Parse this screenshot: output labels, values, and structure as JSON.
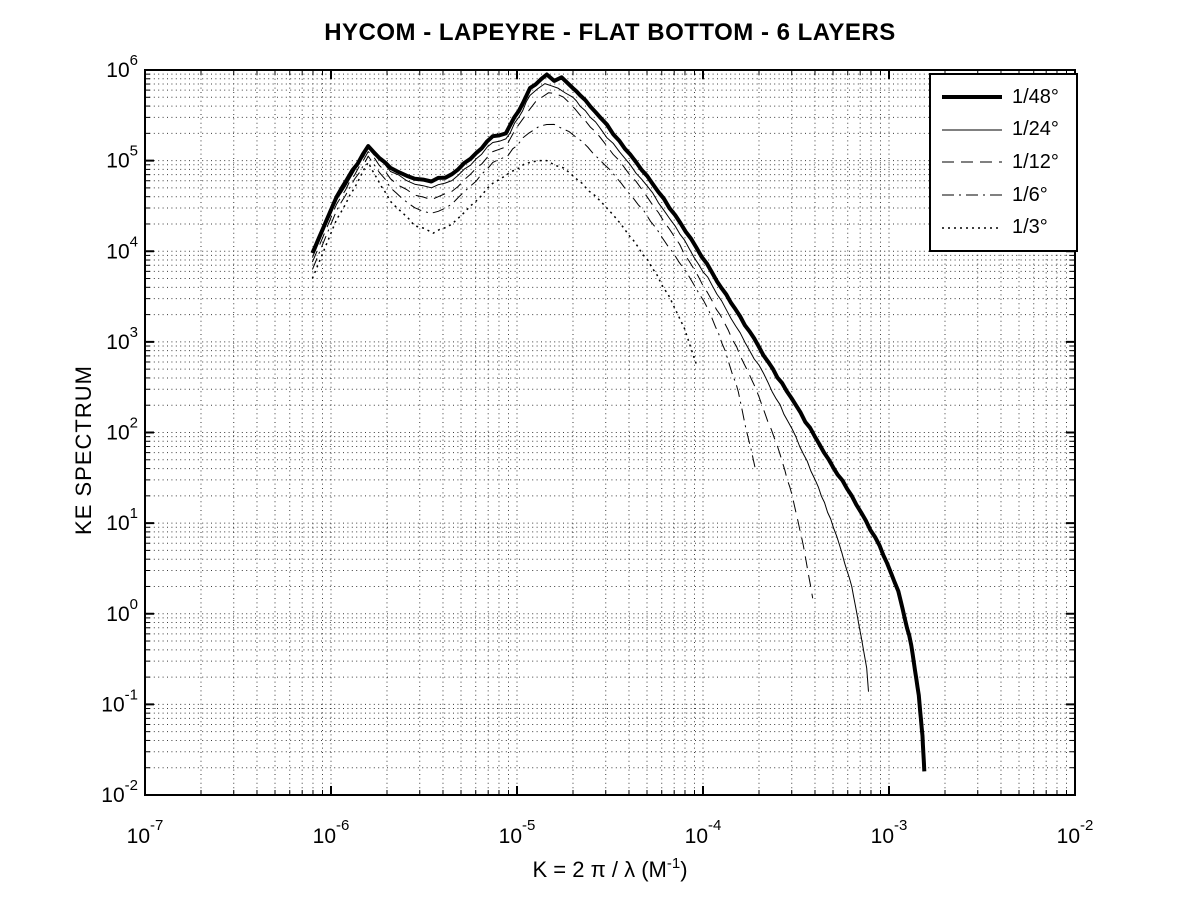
{
  "title": "HYCOM - LAPEYRE - FLAT BOTTOM - 6 LAYERS",
  "ylabel": "KE SPECTRUM",
  "xlabel": {
    "main": "K = 2 π / λ  (M",
    "sup": "-1",
    "close": ")"
  },
  "chart_data": {
    "type": "line",
    "title": "HYCOM - LAPEYRE - FLAT BOTTOM - 6 LAYERS",
    "xlabel": "K = 2 pi / lambda (M^-1)",
    "ylabel": "KE SPECTRUM",
    "xscale": "log",
    "yscale": "log",
    "xlim": [
      1e-07,
      0.01
    ],
    "ylim": [
      0.01,
      1000000.0
    ],
    "xlog_range": [
      -7,
      -2
    ],
    "ylog_range": [
      -2,
      6
    ],
    "x_tick_exponents": [
      -7,
      -6,
      -5,
      -4,
      -3,
      -2
    ],
    "y_tick_exponents": [
      6,
      5,
      4,
      3,
      2,
      1,
      0,
      -1,
      -2
    ],
    "tick_mantissa": "10",
    "grid": true,
    "minor_grid": true,
    "grid_style": "dotted",
    "line_color": "#000000",
    "background": "#ffffff",
    "legend_position": "upper right",
    "series": [
      {
        "id": "1-48deg",
        "label": "1/48°",
        "line_style": "solid",
        "line_width": 4,
        "points_log10": [
          [
            -6.1,
            3.98
          ],
          [
            -5.97,
            4.6
          ],
          [
            -5.8,
            5.16
          ],
          [
            -5.68,
            4.92
          ],
          [
            -5.55,
            4.8
          ],
          [
            -5.46,
            4.77
          ],
          [
            -5.35,
            4.85
          ],
          [
            -5.25,
            5.02
          ],
          [
            -5.13,
            5.27
          ],
          [
            -5.06,
            5.3
          ],
          [
            -4.99,
            5.55
          ],
          [
            -4.93,
            5.8
          ],
          [
            -4.87,
            5.9
          ],
          [
            -4.84,
            5.95
          ],
          [
            -4.8,
            5.88
          ],
          [
            -4.76,
            5.92
          ],
          [
            -4.7,
            5.8
          ],
          [
            -4.66,
            5.72
          ],
          [
            -4.55,
            5.47
          ],
          [
            -4.45,
            5.22
          ],
          [
            -4.3,
            4.83
          ],
          [
            -4.15,
            4.4
          ],
          [
            -3.95,
            3.76
          ],
          [
            -3.8,
            3.28
          ],
          [
            -3.65,
            2.78
          ],
          [
            -3.5,
            2.3
          ],
          [
            -3.35,
            1.78
          ],
          [
            -3.2,
            1.3
          ],
          [
            -3.05,
            0.75
          ],
          [
            -2.95,
            0.25
          ],
          [
            -2.88,
            -0.35
          ],
          [
            -2.84,
            -0.9
          ],
          [
            -2.82,
            -1.35
          ],
          [
            -2.81,
            -1.74
          ]
        ]
      },
      {
        "id": "1-24deg",
        "label": "1/24°",
        "line_style": "solid",
        "line_width": 1,
        "points_log10": [
          [
            -6.1,
            3.93
          ],
          [
            -5.97,
            4.57
          ],
          [
            -5.8,
            5.14
          ],
          [
            -5.68,
            4.88
          ],
          [
            -5.55,
            4.74
          ],
          [
            -5.46,
            4.7
          ],
          [
            -5.35,
            4.78
          ],
          [
            -5.25,
            4.95
          ],
          [
            -5.13,
            5.2
          ],
          [
            -5.06,
            5.24
          ],
          [
            -4.99,
            5.48
          ],
          [
            -4.93,
            5.72
          ],
          [
            -4.85,
            5.85
          ],
          [
            -4.78,
            5.8
          ],
          [
            -4.7,
            5.7
          ],
          [
            -4.66,
            5.6
          ],
          [
            -4.55,
            5.35
          ],
          [
            -4.45,
            5.1
          ],
          [
            -4.3,
            4.72
          ],
          [
            -4.15,
            4.28
          ],
          [
            -3.95,
            3.62
          ],
          [
            -3.8,
            3.1
          ],
          [
            -3.65,
            2.55
          ],
          [
            -3.5,
            1.95
          ],
          [
            -3.38,
            1.4
          ],
          [
            -3.28,
            0.85
          ],
          [
            -3.2,
            0.3
          ],
          [
            -3.15,
            -0.25
          ],
          [
            -3.12,
            -0.6
          ],
          [
            -3.11,
            -0.86
          ]
        ]
      },
      {
        "id": "1-12deg",
        "label": "1/12°",
        "line_style": "dashed",
        "line_width": 1,
        "points_log10": [
          [
            -6.1,
            3.88
          ],
          [
            -5.97,
            4.52
          ],
          [
            -5.8,
            5.1
          ],
          [
            -5.68,
            4.8
          ],
          [
            -5.55,
            4.62
          ],
          [
            -5.46,
            4.57
          ],
          [
            -5.35,
            4.66
          ],
          [
            -5.25,
            4.85
          ],
          [
            -5.13,
            5.1
          ],
          [
            -5.06,
            5.15
          ],
          [
            -4.99,
            5.4
          ],
          [
            -4.9,
            5.65
          ],
          [
            -4.83,
            5.75
          ],
          [
            -4.75,
            5.7
          ],
          [
            -4.66,
            5.5
          ],
          [
            -4.55,
            5.25
          ],
          [
            -4.45,
            5.0
          ],
          [
            -4.3,
            4.6
          ],
          [
            -4.15,
            4.15
          ],
          [
            -3.95,
            3.45
          ],
          [
            -3.82,
            2.95
          ],
          [
            -3.7,
            2.4
          ],
          [
            -3.6,
            1.85
          ],
          [
            -3.52,
            1.3
          ],
          [
            -3.46,
            0.75
          ],
          [
            -3.43,
            0.4
          ],
          [
            -3.41,
            0.17
          ]
        ]
      },
      {
        "id": "1-6deg",
        "label": "1/6°",
        "line_style": "dashdot",
        "line_width": 1,
        "points_log10": [
          [
            -6.1,
            3.8
          ],
          [
            -5.97,
            4.45
          ],
          [
            -5.8,
            5.05
          ],
          [
            -5.68,
            4.7
          ],
          [
            -5.55,
            4.48
          ],
          [
            -5.46,
            4.42
          ],
          [
            -5.35,
            4.52
          ],
          [
            -5.25,
            4.72
          ],
          [
            -5.13,
            4.98
          ],
          [
            -5.05,
            5.05
          ],
          [
            -4.97,
            5.25
          ],
          [
            -4.88,
            5.38
          ],
          [
            -4.8,
            5.4
          ],
          [
            -4.72,
            5.32
          ],
          [
            -4.62,
            5.15
          ],
          [
            -4.5,
            4.9
          ],
          [
            -4.38,
            4.6
          ],
          [
            -4.25,
            4.25
          ],
          [
            -4.1,
            3.8
          ],
          [
            -3.97,
            3.35
          ],
          [
            -3.88,
            2.9
          ],
          [
            -3.81,
            2.45
          ],
          [
            -3.77,
            2.05
          ],
          [
            -3.74,
            1.8
          ],
          [
            -3.72,
            1.61
          ]
        ]
      },
      {
        "id": "1-3deg",
        "label": "1/3°",
        "line_style": "dotted",
        "line_width": 1.5,
        "points_log10": [
          [
            -6.1,
            3.7
          ],
          [
            -5.97,
            4.35
          ],
          [
            -5.8,
            4.98
          ],
          [
            -5.68,
            4.55
          ],
          [
            -5.55,
            4.28
          ],
          [
            -5.45,
            4.2
          ],
          [
            -5.35,
            4.3
          ],
          [
            -5.25,
            4.5
          ],
          [
            -5.13,
            4.75
          ],
          [
            -5.03,
            4.88
          ],
          [
            -4.93,
            4.98
          ],
          [
            -4.84,
            5.0
          ],
          [
            -4.75,
            4.92
          ],
          [
            -4.65,
            4.75
          ],
          [
            -4.55,
            4.55
          ],
          [
            -4.45,
            4.32
          ],
          [
            -4.35,
            4.05
          ],
          [
            -4.25,
            3.75
          ],
          [
            -4.17,
            3.45
          ],
          [
            -4.1,
            3.15
          ],
          [
            -4.06,
            2.9
          ],
          [
            -4.03,
            2.72
          ]
        ]
      }
    ]
  }
}
